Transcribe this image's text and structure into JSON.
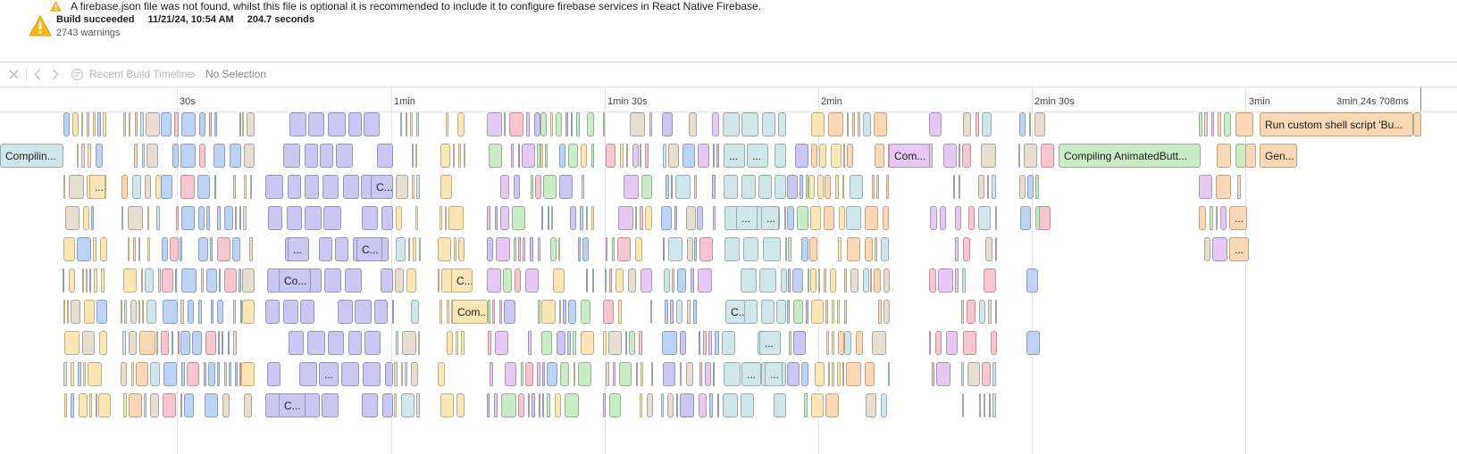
{
  "banner": {
    "warning_message": "A firebase.json file was not found, whilst this file is optional it is recommended to include it to configure firebase services in React Native Firebase.",
    "build_status": "Build succeeded",
    "build_date": "11/21/24, 10:54 AM",
    "build_duration": "204.7 seconds",
    "warning_count": "2743 warnings"
  },
  "jumpbar": {
    "breadcrumb_item": "Recent Build Timeline",
    "separator": "›",
    "selection": "No Selection"
  },
  "ruler": {
    "ticks": [
      "30s",
      "1min",
      "1min 30s",
      "2min",
      "2min 30s",
      "3min",
      "3min 24s 708ms"
    ]
  },
  "colors": {
    "cyan": "#cfe6eb",
    "lavender": "#cac7f2",
    "blue": "#bcd3f5",
    "yellow": "#fbe7b6",
    "orange": "#fbd8b5",
    "pink": "#f8c6ce",
    "green": "#c9ebc6",
    "purple": "#e6c9f3",
    "tan": "#e7ddd1",
    "warning": "#f5b81c"
  },
  "labeled_tasks": [
    {
      "label": "Run custom shell script 'Bu...",
      "color": "orange"
    },
    {
      "label": "Compilin...",
      "color": "cyan"
    },
    {
      "label": "...",
      "color": "cyan"
    },
    {
      "label": "...",
      "color": "cyan"
    },
    {
      "label": "Com...",
      "color": "purple"
    },
    {
      "label": "Compiling AnimatedButt...",
      "color": "green"
    },
    {
      "label": "Gen...",
      "color": "orange"
    },
    {
      "label": "...",
      "color": "yellow"
    },
    {
      "label": "C...",
      "color": "lavender"
    },
    {
      "label": "...",
      "color": "cyan"
    },
    {
      "label": "...",
      "color": "cyan"
    },
    {
      "label": "...",
      "color": "orange"
    },
    {
      "label": "...",
      "color": "lavender"
    },
    {
      "label": "C...",
      "color": "lavender"
    },
    {
      "label": "...",
      "color": "orange"
    },
    {
      "label": "Co...",
      "color": "lavender"
    },
    {
      "label": "C...",
      "color": "yellow"
    },
    {
      "label": "Com...",
      "color": "yellow"
    },
    {
      "label": "C...",
      "color": "cyan"
    },
    {
      "label": "...",
      "color": "cyan"
    },
    {
      "label": "...",
      "color": "cyan"
    },
    {
      "label": "...",
      "color": "lavender"
    },
    {
      "label": "...",
      "color": "cyan"
    },
    {
      "label": "...",
      "color": "cyan"
    },
    {
      "label": "C...",
      "color": "lavender"
    }
  ]
}
